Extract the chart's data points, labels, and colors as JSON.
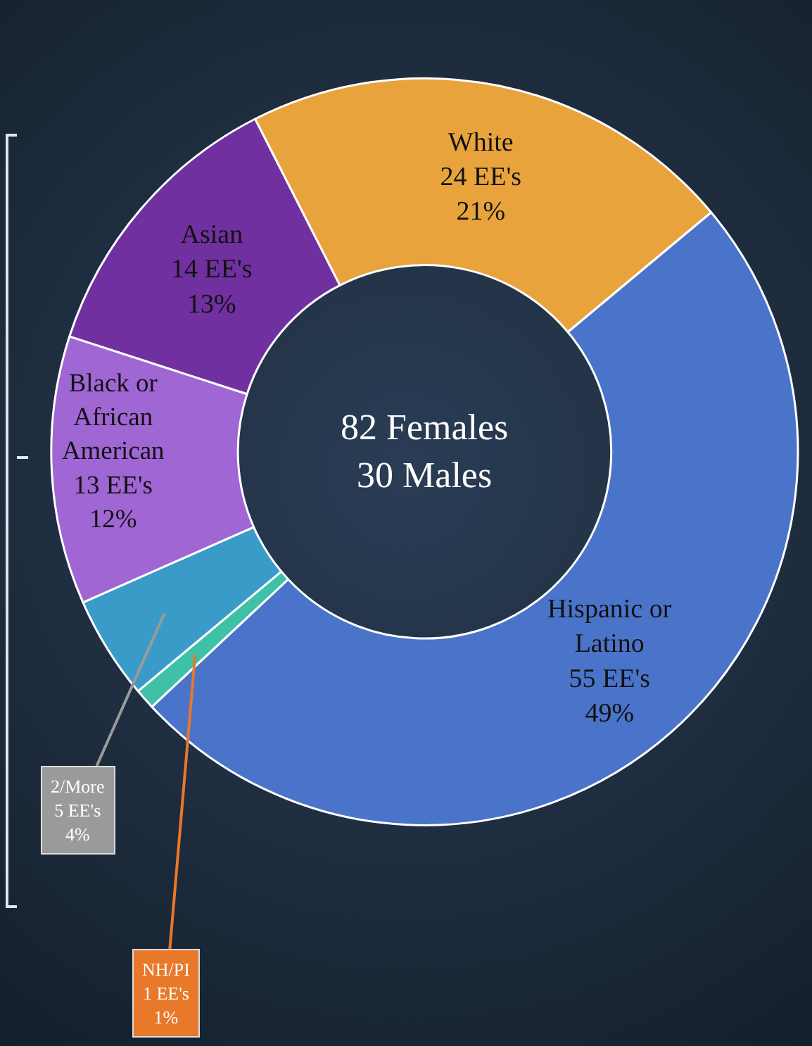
{
  "chart_data": {
    "type": "donut",
    "categories": [
      "White",
      "Hispanic or\nLatino",
      "NH/PI",
      "2/More",
      "Black or\nAfrican\nAmerican",
      "Asian"
    ],
    "values": [
      24,
      55,
      1,
      5,
      13,
      14
    ],
    "value_labels": [
      "24 EE's\n21%",
      "55 EE's\n49%",
      "1 EE's\n1%",
      "5 EE's\n4%",
      "13 EE's\n12%",
      "14 EE's\n13%"
    ],
    "colors": [
      "#e8a33d",
      "#4a74c9",
      "#3fc1a8",
      "#3a9bc9",
      "#a066d4",
      "#7030a0"
    ],
    "annotations": [
      "82 Females\n30 Males"
    ],
    "legend": false
  }
}
